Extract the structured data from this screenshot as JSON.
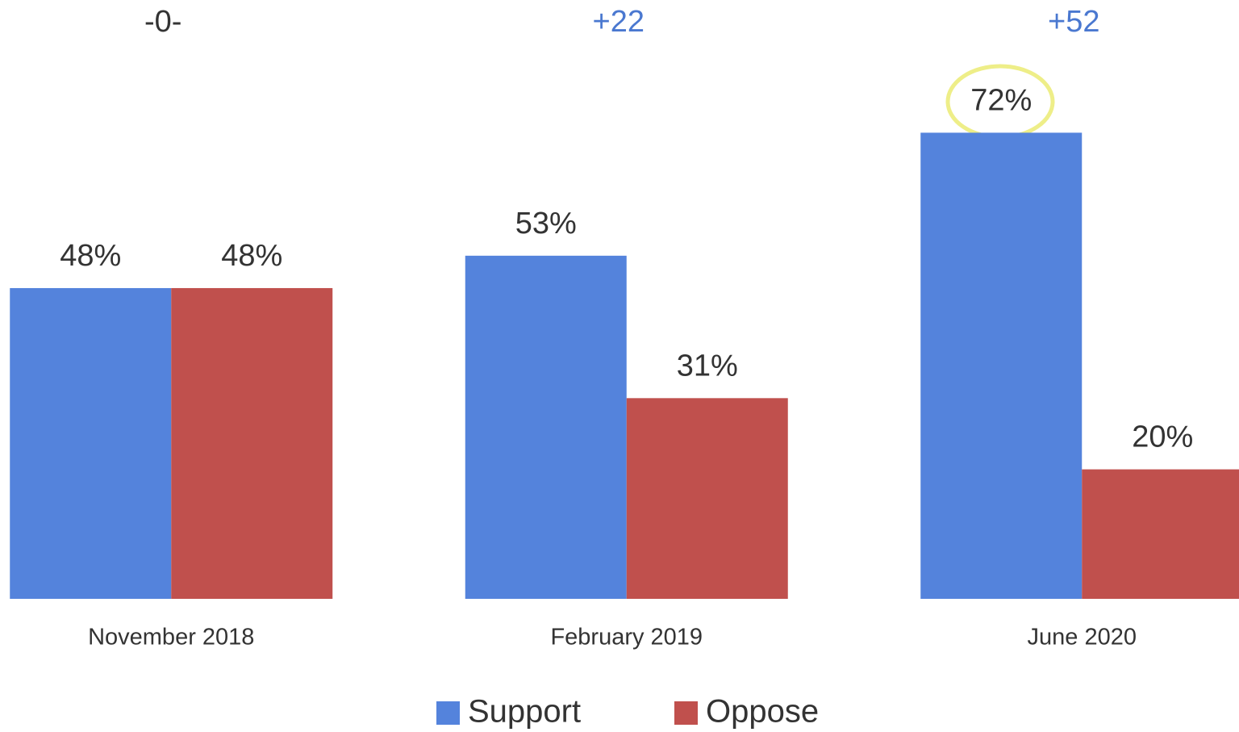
{
  "chart_data": {
    "type": "bar",
    "categories": [
      "November 2018",
      "February 2019",
      "June 2020"
    ],
    "annotations": [
      {
        "text": "-0-",
        "color": "#333333"
      },
      {
        "text": "+22",
        "color": "#4a78d0"
      },
      {
        "text": "+52",
        "color": "#4a78d0"
      }
    ],
    "series": [
      {
        "name": "Support",
        "color": "#5483dc",
        "values": [
          48,
          53,
          72
        ],
        "value_labels": [
          "48%",
          "53%",
          "72%"
        ]
      },
      {
        "name": "Oppose",
        "color": "#c0504d",
        "values": [
          48,
          31,
          20
        ],
        "value_labels": [
          "48%",
          "31%",
          "20%"
        ]
      }
    ],
    "ylim": [
      0,
      92
    ],
    "legend": "bottom"
  }
}
